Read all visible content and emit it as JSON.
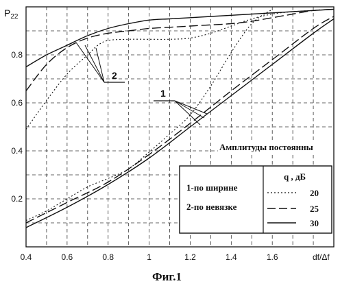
{
  "chart_data": {
    "type": "line",
    "ylabel": "P22",
    "ylabel_main": "P",
    "ylabel_sub": "22",
    "xlabel": "df/Δf",
    "caption": "Фиг.1",
    "xlim": [
      0.4,
      1.9
    ],
    "ylim": [
      0.0,
      1.0
    ],
    "x_ticks": [
      0.4,
      0.6,
      0.8,
      1.0,
      1.2,
      1.4,
      1.6
    ],
    "x_tick_labels": [
      "0.4",
      "0.6",
      "0.8",
      "1",
      "1.2",
      "1.4",
      "1.6"
    ],
    "y_ticks": [
      0.2,
      0.4,
      0.6,
      0.8
    ],
    "y_tick_labels": [
      "0.2",
      "0.4",
      "0.6",
      "0.8"
    ],
    "grid": true,
    "annotation": "Амплитуды постоянны",
    "markers": [
      {
        "label": "1",
        "meaning": "1-по ширине"
      },
      {
        "label": "2",
        "meaning": "2-по невязке"
      }
    ],
    "legend": {
      "method_lines": [
        "1-по ширине",
        "2-по невязке"
      ],
      "header": "q , дБ",
      "entries": [
        {
          "value": "20",
          "style": "dotted"
        },
        {
          "value": "25",
          "style": "dashed"
        },
        {
          "value": "30",
          "style": "solid"
        }
      ]
    },
    "series": [
      {
        "method": "2",
        "q": "30",
        "style": "solid",
        "x": [
          0.4,
          0.5,
          0.6,
          0.7,
          0.8,
          0.9,
          1.0,
          1.1,
          1.2,
          1.3,
          1.4,
          1.5,
          1.6,
          1.7,
          1.8,
          1.9
        ],
        "y": [
          0.75,
          0.8,
          0.84,
          0.88,
          0.91,
          0.93,
          0.945,
          0.95,
          0.955,
          0.96,
          0.965,
          0.97,
          0.975,
          0.98,
          0.985,
          0.99
        ]
      },
      {
        "method": "2",
        "q": "25",
        "style": "dashed",
        "x": [
          0.4,
          0.5,
          0.6,
          0.7,
          0.8,
          0.9,
          1.0,
          1.1,
          1.2,
          1.3,
          1.4,
          1.5,
          1.6,
          1.7,
          1.8,
          1.9
        ],
        "y": [
          0.65,
          0.76,
          0.83,
          0.87,
          0.89,
          0.9,
          0.91,
          0.915,
          0.92,
          0.925,
          0.93,
          0.94,
          0.955,
          0.97,
          0.985,
          0.99
        ]
      },
      {
        "method": "2",
        "q": "20",
        "style": "dotted",
        "x": [
          0.4,
          0.5,
          0.6,
          0.7,
          0.75,
          0.8,
          0.9,
          1.0,
          1.1,
          1.2,
          1.3,
          1.4,
          1.5,
          1.6,
          1.7,
          1.8,
          1.9
        ],
        "y": [
          0.49,
          0.61,
          0.72,
          0.8,
          0.84,
          0.86,
          0.865,
          0.865,
          0.865,
          0.87,
          0.89,
          0.92,
          0.95,
          0.97,
          0.98,
          0.985,
          0.99
        ]
      },
      {
        "method": "1",
        "q": "30",
        "style": "solid",
        "x": [
          0.4,
          0.6,
          0.8,
          1.0,
          1.2,
          1.4,
          1.6,
          1.8,
          1.9
        ],
        "y": [
          0.08,
          0.165,
          0.26,
          0.37,
          0.5,
          0.63,
          0.76,
          0.89,
          0.95
        ]
      },
      {
        "method": "1",
        "q": "25",
        "style": "dashed",
        "x": [
          0.4,
          0.6,
          0.8,
          1.0,
          1.2,
          1.4,
          1.6,
          1.8,
          1.9
        ],
        "y": [
          0.1,
          0.185,
          0.27,
          0.385,
          0.515,
          0.65,
          0.78,
          0.91,
          0.96
        ]
      },
      {
        "method": "1",
        "q": "20",
        "style": "dotted",
        "x": [
          0.4,
          0.5,
          0.6,
          0.7,
          0.8,
          0.9,
          1.0,
          1.1,
          1.2,
          1.3,
          1.4,
          1.5,
          1.6
        ],
        "y": [
          0.11,
          0.15,
          0.2,
          0.25,
          0.285,
          0.325,
          0.395,
          0.47,
          0.55,
          0.67,
          0.81,
          0.93,
          0.99
        ]
      }
    ]
  }
}
